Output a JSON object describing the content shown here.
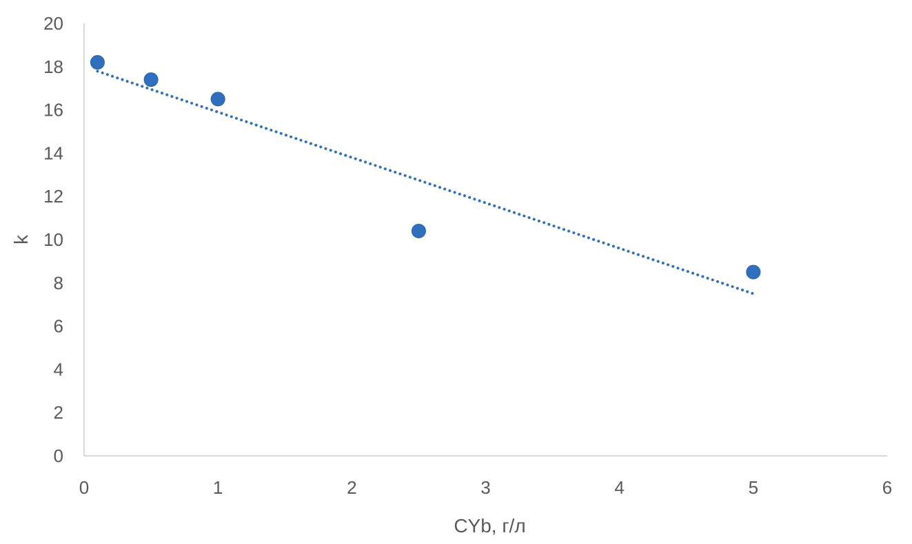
{
  "chart_data": {
    "type": "scatter",
    "title": "",
    "xlabel": "CYb, г/л",
    "ylabel": "k",
    "xlim": [
      0,
      6
    ],
    "ylim": [
      0,
      20
    ],
    "xticks": [
      0,
      1,
      2,
      3,
      4,
      5,
      6
    ],
    "yticks": [
      0,
      2,
      4,
      6,
      8,
      10,
      12,
      14,
      16,
      18,
      20
    ],
    "grid": false,
    "legend": "none",
    "series": [
      {
        "x": [
          0.1,
          0.5,
          1,
          2.5,
          5
        ],
        "y": [
          18.2,
          17.4,
          16.5,
          10.4,
          8.5
        ],
        "color": "#2E6FC0"
      }
    ],
    "trendline": {
      "kind": "linear",
      "style": "dotted",
      "color": "#2E6FC0",
      "x_range": [
        0.1,
        5
      ],
      "slope": -2.1,
      "intercept": 18.0
    },
    "axis_color": "#D9D9D9",
    "text_color": "#595959"
  }
}
